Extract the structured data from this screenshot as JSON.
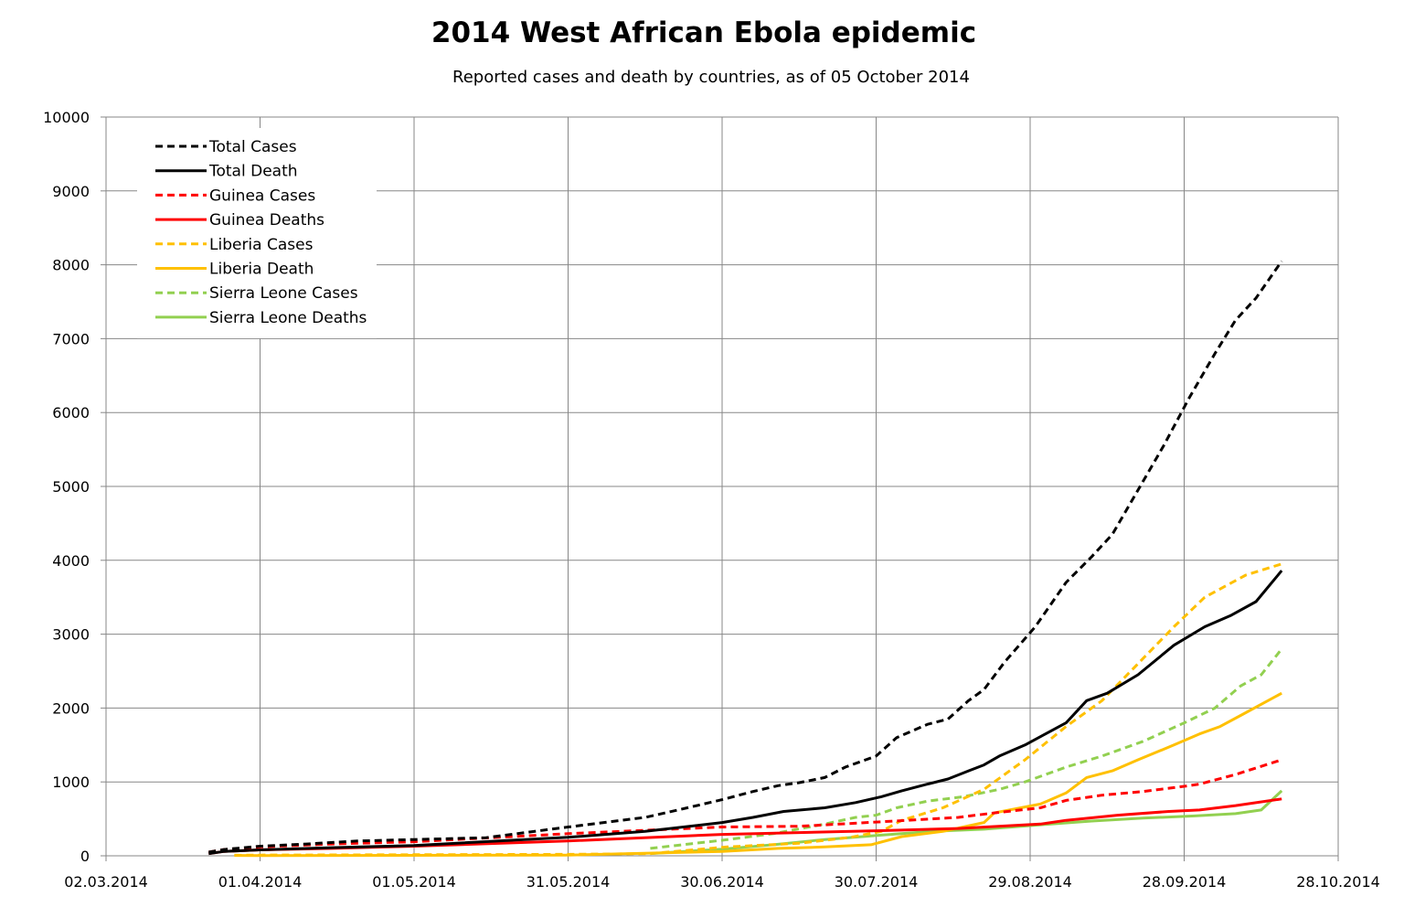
{
  "chart_data": {
    "type": "line",
    "title": "2014 West African Ebola epidemic",
    "subtitle": "Reported cases and death by countries, as of 05 October 2014",
    "xlabel": "",
    "ylabel": "",
    "x_axis": {
      "type": "date",
      "min": "2014-03-02",
      "max": "2014-10-28",
      "tick_step_days": 30
    },
    "x_tick_labels": [
      "02.03.2014",
      "01.04.2014",
      "01.05.2014",
      "31.05.2014",
      "30.06.2014",
      "30.07.2014",
      "29.08.2014",
      "28.09.2014",
      "28.10.2014"
    ],
    "ylim": [
      0,
      10000
    ],
    "y_tick_labels": [
      "0",
      "1000",
      "2000",
      "3000",
      "4000",
      "5000",
      "6000",
      "7000",
      "8000",
      "9000",
      "10000"
    ],
    "grid": true,
    "legend_position": "top-left",
    "series": [
      {
        "name": "Total Cases",
        "color": "#000000",
        "dashed": true,
        "points": [
          [
            "2014-03-22",
            49
          ],
          [
            "2014-03-25",
            86
          ],
          [
            "2014-04-01",
            130
          ],
          [
            "2014-04-10",
            160
          ],
          [
            "2014-04-20",
            200
          ],
          [
            "2014-05-01",
            220
          ],
          [
            "2014-05-15",
            245
          ],
          [
            "2014-05-31",
            390
          ],
          [
            "2014-06-15",
            520
          ],
          [
            "2014-06-22",
            630
          ],
          [
            "2014-06-30",
            760
          ],
          [
            "2014-07-06",
            870
          ],
          [
            "2014-07-11",
            950
          ],
          [
            "2014-07-15",
            990
          ],
          [
            "2014-07-20",
            1060
          ],
          [
            "2014-07-24",
            1200
          ],
          [
            "2014-07-30",
            1350
          ],
          [
            "2014-08-03",
            1600
          ],
          [
            "2014-08-09",
            1780
          ],
          [
            "2014-08-13",
            1850
          ],
          [
            "2014-08-17",
            2100
          ],
          [
            "2014-08-20",
            2250
          ],
          [
            "2014-08-24",
            2620
          ],
          [
            "2014-08-30",
            3100
          ],
          [
            "2014-09-05",
            3700
          ],
          [
            "2014-09-10",
            4050
          ],
          [
            "2014-09-14",
            4350
          ],
          [
            "2014-09-19",
            4950
          ],
          [
            "2014-09-24",
            5550
          ],
          [
            "2014-09-29",
            6200
          ],
          [
            "2014-10-04",
            6800
          ],
          [
            "2014-10-08",
            7250
          ],
          [
            "2014-10-12",
            7550
          ],
          [
            "2014-10-17",
            8050
          ]
        ]
      },
      {
        "name": "Total Death",
        "color": "#000000",
        "dashed": false,
        "points": [
          [
            "2014-03-22",
            29
          ],
          [
            "2014-03-25",
            60
          ],
          [
            "2014-04-01",
            80
          ],
          [
            "2014-04-15",
            110
          ],
          [
            "2014-05-01",
            140
          ],
          [
            "2014-05-31",
            250
          ],
          [
            "2014-06-15",
            330
          ],
          [
            "2014-06-30",
            450
          ],
          [
            "2014-07-06",
            520
          ],
          [
            "2014-07-12",
            600
          ],
          [
            "2014-07-20",
            650
          ],
          [
            "2014-07-26",
            720
          ],
          [
            "2014-07-31",
            800
          ],
          [
            "2014-08-04",
            880
          ],
          [
            "2014-08-09",
            970
          ],
          [
            "2014-08-13",
            1040
          ],
          [
            "2014-08-17",
            1150
          ],
          [
            "2014-08-20",
            1230
          ],
          [
            "2014-08-23",
            1350
          ],
          [
            "2014-08-28",
            1500
          ],
          [
            "2014-09-01",
            1650
          ],
          [
            "2014-09-05",
            1800
          ],
          [
            "2014-09-09",
            2100
          ],
          [
            "2014-09-13",
            2200
          ],
          [
            "2014-09-19",
            2450
          ],
          [
            "2014-09-26",
            2850
          ],
          [
            "2014-10-02",
            3100
          ],
          [
            "2014-10-07",
            3250
          ],
          [
            "2014-10-12",
            3440
          ],
          [
            "2014-10-17",
            3860
          ]
        ]
      },
      {
        "name": "Guinea Cases",
        "color": "#ff0000",
        "dashed": true,
        "points": [
          [
            "2014-03-22",
            49
          ],
          [
            "2014-03-25",
            86
          ],
          [
            "2014-04-01",
            120
          ],
          [
            "2014-04-15",
            160
          ],
          [
            "2014-05-01",
            190
          ],
          [
            "2014-05-31",
            300
          ],
          [
            "2014-06-30",
            390
          ],
          [
            "2014-07-15",
            400
          ],
          [
            "2014-07-31",
            460
          ],
          [
            "2014-08-15",
            520
          ],
          [
            "2014-08-22",
            580
          ],
          [
            "2014-08-31",
            650
          ],
          [
            "2014-09-05",
            750
          ],
          [
            "2014-09-12",
            820
          ],
          [
            "2014-09-20",
            870
          ],
          [
            "2014-09-28",
            940
          ],
          [
            "2014-10-01",
            970
          ],
          [
            "2014-10-08",
            1100
          ],
          [
            "2014-10-17",
            1300
          ]
        ]
      },
      {
        "name": "Guinea Deaths",
        "color": "#ff0000",
        "dashed": false,
        "points": [
          [
            "2014-03-22",
            29
          ],
          [
            "2014-03-25",
            60
          ],
          [
            "2014-04-01",
            80
          ],
          [
            "2014-04-15",
            100
          ],
          [
            "2014-05-01",
            130
          ],
          [
            "2014-05-31",
            200
          ],
          [
            "2014-06-30",
            290
          ],
          [
            "2014-07-31",
            340
          ],
          [
            "2014-08-15",
            370
          ],
          [
            "2014-08-31",
            430
          ],
          [
            "2014-09-05",
            480
          ],
          [
            "2014-09-15",
            550
          ],
          [
            "2014-09-25",
            600
          ],
          [
            "2014-10-01",
            620
          ],
          [
            "2014-10-08",
            680
          ],
          [
            "2014-10-17",
            770
          ]
        ]
      },
      {
        "name": "Liberia Cases",
        "color": "#ffc000",
        "dashed": true,
        "points": [
          [
            "2014-03-27",
            8
          ],
          [
            "2014-04-01",
            10
          ],
          [
            "2014-05-31",
            20
          ],
          [
            "2014-06-16",
            30
          ],
          [
            "2014-07-01",
            120
          ],
          [
            "2014-07-15",
            170
          ],
          [
            "2014-07-25",
            250
          ],
          [
            "2014-07-31",
            330
          ],
          [
            "2014-08-04",
            480
          ],
          [
            "2014-08-12",
            650
          ],
          [
            "2014-08-20",
            900
          ],
          [
            "2014-08-28",
            1300
          ],
          [
            "2014-09-05",
            1750
          ],
          [
            "2014-09-12",
            2100
          ],
          [
            "2014-09-19",
            2600
          ],
          [
            "2014-09-26",
            3100
          ],
          [
            "2014-10-02",
            3500
          ],
          [
            "2014-10-10",
            3800
          ],
          [
            "2014-10-17",
            3950
          ]
        ]
      },
      {
        "name": "Liberia Death",
        "color": "#ffc000",
        "dashed": false,
        "points": [
          [
            "2014-03-27",
            5
          ],
          [
            "2014-04-01",
            3
          ],
          [
            "2014-05-31",
            10
          ],
          [
            "2014-06-30",
            60
          ],
          [
            "2014-07-11",
            100
          ],
          [
            "2014-07-20",
            120
          ],
          [
            "2014-07-29",
            150
          ],
          [
            "2014-08-04",
            260
          ],
          [
            "2014-08-12",
            330
          ],
          [
            "2014-08-20",
            450
          ],
          [
            "2014-08-22",
            580
          ],
          [
            "2014-08-31",
            700
          ],
          [
            "2014-09-05",
            850
          ],
          [
            "2014-09-09",
            1060
          ],
          [
            "2014-09-14",
            1150
          ],
          [
            "2014-09-19",
            1300
          ],
          [
            "2014-09-26",
            1500
          ],
          [
            "2014-10-01",
            1650
          ],
          [
            "2014-10-05",
            1750
          ],
          [
            "2014-10-09",
            1900
          ],
          [
            "2014-10-17",
            2200
          ]
        ]
      },
      {
        "name": "Sierra Leone Cases",
        "color": "#92d050",
        "dashed": true,
        "points": [
          [
            "2014-06-16",
            100
          ],
          [
            "2014-06-30",
            210
          ],
          [
            "2014-07-10",
            300
          ],
          [
            "2014-07-20",
            430
          ],
          [
            "2014-07-26",
            520
          ],
          [
            "2014-07-30",
            550
          ],
          [
            "2014-08-03",
            650
          ],
          [
            "2014-08-09",
            740
          ],
          [
            "2014-08-16",
            800
          ],
          [
            "2014-08-23",
            900
          ],
          [
            "2014-08-28",
            1000
          ],
          [
            "2014-09-05",
            1200
          ],
          [
            "2014-09-12",
            1350
          ],
          [
            "2014-09-20",
            1550
          ],
          [
            "2014-09-28",
            1800
          ],
          [
            "2014-10-04",
            2000
          ],
          [
            "2014-10-09",
            2300
          ],
          [
            "2014-10-13",
            2450
          ],
          [
            "2014-10-17",
            2800
          ]
        ]
      },
      {
        "name": "Sierra Leone Deaths",
        "color": "#92d050",
        "dashed": false,
        "points": [
          [
            "2014-06-16",
            30
          ],
          [
            "2014-06-30",
            90
          ],
          [
            "2014-07-10",
            150
          ],
          [
            "2014-07-20",
            220
          ],
          [
            "2014-07-31",
            280
          ],
          [
            "2014-08-10",
            330
          ],
          [
            "2014-08-20",
            360
          ],
          [
            "2014-08-31",
            420
          ],
          [
            "2014-09-10",
            470
          ],
          [
            "2014-09-20",
            510
          ],
          [
            "2014-09-30",
            540
          ],
          [
            "2014-10-08",
            570
          ],
          [
            "2014-10-13",
            620
          ],
          [
            "2014-10-17",
            880
          ]
        ]
      }
    ]
  }
}
